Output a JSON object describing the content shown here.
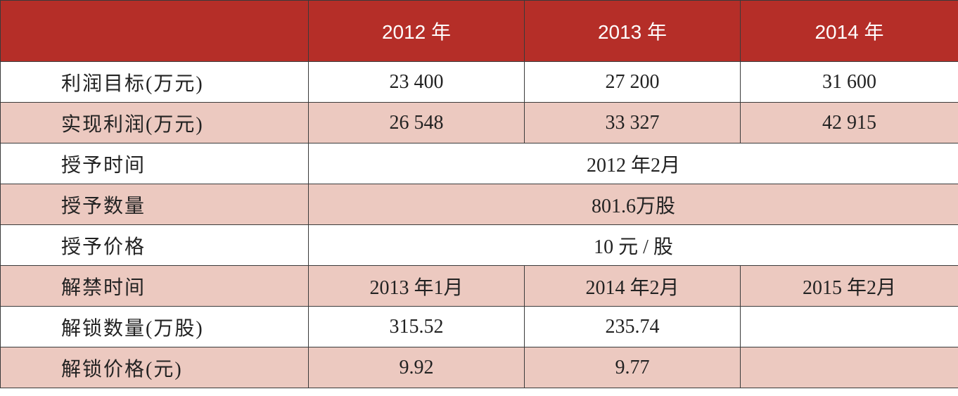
{
  "table": {
    "header": [
      "2012 年",
      "2013 年",
      "2014 年"
    ],
    "rows": [
      {
        "label": "利润目标(万元)",
        "cells": [
          "23 400",
          "27 200",
          "31 600"
        ]
      },
      {
        "label": "实现利润(万元)",
        "cells": [
          "26 548",
          "33 327",
          "42 915"
        ]
      },
      {
        "label": "授予时间",
        "cells": [
          "2012 年2月"
        ]
      },
      {
        "label": "授予数量",
        "cells": [
          "801.6万股"
        ]
      },
      {
        "label": "授予价格",
        "cells": [
          "10 元 / 股"
        ]
      },
      {
        "label": "解禁时间",
        "cells": [
          "2013 年1月",
          "2014 年2月",
          "2015 年2月"
        ]
      },
      {
        "label": "解锁数量(万股)",
        "cells": [
          "315.52",
          "235.74"
        ]
      },
      {
        "label": "解锁价格(元)",
        "cells": [
          "9.92",
          "9.77"
        ]
      }
    ]
  }
}
